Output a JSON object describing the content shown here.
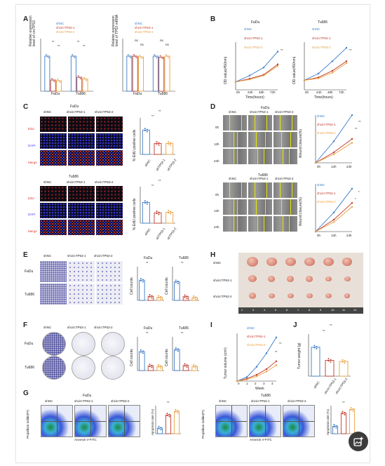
{
  "panels": {
    "A": {
      "label": "A",
      "legend": [
        "shNC",
        "shcircTP53-1",
        "shcircTP53-2"
      ],
      "chart_left": {
        "ylabel": "Relative expression level of circTP53",
        "groups": [
          "FaDu",
          "Tu686"
        ],
        "sig": [
          "**",
          "**",
          "**",
          "**"
        ]
      },
      "chart_right": {
        "ylabel": "Relative expression level of TP53 mRNA",
        "groups": [
          "FaDu",
          "Tu686"
        ],
        "sig": [
          "ns",
          "ns",
          "ns",
          "ns"
        ]
      }
    },
    "B": {
      "label": "B",
      "titles": [
        "FaDu",
        "Tu686"
      ],
      "legend": [
        "shNC",
        "shcircTP53-1",
        "shcircTP53-2"
      ],
      "ylabel": "OD value(450nm)",
      "xlabel": "Time(hours)",
      "xticks": [
        "0h",
        "24h",
        "48h",
        "72h"
      ],
      "sig": [
        "**",
        "**"
      ]
    },
    "C": {
      "label": "C",
      "titles": [
        "FaDu",
        "Tu686"
      ],
      "cols": [
        "shNC",
        "shcircTP53-1",
        "shcircTP53-2"
      ],
      "rows": [
        "EdU",
        "DAPI",
        "Merge"
      ],
      "ylabel": "% EdU positive cells",
      "xticks": [
        "shNC",
        "shTP53-1",
        "shTP53-2"
      ],
      "sig": [
        "**",
        "**"
      ]
    },
    "D": {
      "label": "D",
      "titles": [
        "FaDu",
        "Tu686"
      ],
      "cols": [
        "shNC",
        "shcircTP53-1",
        "shcircTP53-2"
      ],
      "rows": [
        "0h",
        "12h",
        "24h"
      ],
      "legend": [
        "shNC",
        "shcircTP53-1",
        "shcircTP53-2"
      ],
      "ylabel": "Wound closure(%)",
      "xticks": [
        "0h",
        "12h",
        "24h"
      ],
      "sig": [
        "**",
        "**",
        "*",
        "*"
      ]
    },
    "E": {
      "label": "E",
      "cols": [
        "shNC",
        "shcircTP53-1",
        "shcircTP53-2"
      ],
      "rows": [
        "FaDu",
        "Tu686"
      ],
      "titles": [
        "FaDu",
        "Tu686"
      ],
      "ylabel": "Cell counts",
      "sig": [
        "**",
        "**"
      ]
    },
    "F": {
      "label": "F",
      "cols": [
        "shNC",
        "shcircTP53-1",
        "shcircTP53-2"
      ],
      "rows": [
        "FaDu",
        "Tu686"
      ],
      "titles": [
        "FaDu",
        "Tu686"
      ],
      "ylabel": "Cell counts",
      "sig": [
        "**",
        "**"
      ]
    },
    "G": {
      "label": "G",
      "titles": [
        "FaDu",
        "Tu686"
      ],
      "cols": [
        "shNC",
        "shcircTP53-1",
        "shcircTP53-2"
      ],
      "ylabel": "Propidium Iodide(PI)",
      "xlabel": "Annexin V-FITC",
      "bar_ylabel": "Apoptosis rate (%)",
      "sig": [
        "**",
        "**"
      ]
    },
    "H": {
      "label": "H",
      "rows": [
        "shNC",
        "shcircTP53-1",
        "shcircTP53-2"
      ],
      "ruler": [
        "2",
        "3",
        "4",
        "5",
        "6",
        "7",
        "8",
        "9",
        "10",
        "11",
        "12"
      ]
    },
    "I": {
      "label": "I",
      "legend": [
        "shNC",
        "shcircTP53-1",
        "shcircTP53-2"
      ],
      "ylabel": "Tumor volume (cm³)",
      "xlabel": "Week",
      "xticks": [
        "0",
        "1",
        "2",
        "3",
        "4"
      ],
      "sig": [
        "**",
        "**"
      ]
    },
    "J": {
      "label": "J",
      "ylabel": "Tumor weight (g)",
      "xticks": [
        "shNC",
        "shcircTP53-1",
        "shcircTP53-2"
      ],
      "sig": [
        "**",
        "**"
      ]
    }
  },
  "colors": {
    "shNC": "#3a7bc8",
    "sh1": "#c0392b",
    "sh2": "#e8a040"
  },
  "chart_data": [
    {
      "type": "bar",
      "panel": "A-left",
      "categories": [
        "FaDu",
        "Tu686"
      ],
      "series": [
        {
          "name": "shNC",
          "values": [
            1.0,
            1.0
          ]
        },
        {
          "name": "shcircTP53-1",
          "values": [
            0.32,
            0.4
          ]
        },
        {
          "name": "shcircTP53-2",
          "values": [
            0.3,
            0.35
          ]
        }
      ],
      "ylim": [
        0,
        1.5
      ]
    },
    {
      "type": "bar",
      "panel": "A-right",
      "categories": [
        "FaDu",
        "Tu686"
      ],
      "series": [
        {
          "name": "shNC",
          "values": [
            1.0,
            1.0
          ]
        },
        {
          "name": "shcircTP53-1",
          "values": [
            1.0,
            0.97
          ]
        },
        {
          "name": "shcircTP53-2",
          "values": [
            0.98,
            1.0
          ]
        }
      ],
      "ylim": [
        0,
        1.5
      ]
    },
    {
      "type": "line",
      "panel": "B-FaDu",
      "x": [
        "0h",
        "24h",
        "48h",
        "72h"
      ],
      "series": [
        {
          "name": "shNC",
          "values": [
            0.5,
            0.9,
            1.4,
            2.4
          ]
        },
        {
          "name": "shcircTP53-1",
          "values": [
            0.5,
            0.7,
            0.95,
            1.6
          ]
        },
        {
          "name": "shcircTP53-2",
          "values": [
            0.5,
            0.65,
            0.9,
            1.5
          ]
        }
      ],
      "ylim": [
        0,
        3
      ]
    },
    {
      "type": "line",
      "panel": "B-Tu686",
      "x": [
        "0h",
        "24h",
        "48h",
        "72h"
      ],
      "series": [
        {
          "name": "shNC",
          "values": [
            0.5,
            0.85,
            1.5,
            2.2
          ]
        },
        {
          "name": "shcircTP53-1",
          "values": [
            0.5,
            0.65,
            1.0,
            1.5
          ]
        },
        {
          "name": "shcircTP53-2",
          "values": [
            0.5,
            0.6,
            0.9,
            1.4
          ]
        }
      ],
      "ylim": [
        0,
        2.5
      ]
    },
    {
      "type": "bar",
      "panel": "C-FaDu",
      "categories": [
        "shNC",
        "shTP53-1",
        "shTP53-2"
      ],
      "values": [
        40,
        18,
        18
      ],
      "ylim": [
        0,
        60
      ]
    },
    {
      "type": "bar",
      "panel": "C-Tu686",
      "categories": [
        "shNC",
        "shTP53-1",
        "shTP53-2"
      ],
      "values": [
        34,
        17,
        18
      ],
      "ylim": [
        0,
        60
      ]
    },
    {
      "type": "line",
      "panel": "D-FaDu",
      "x": [
        "0h",
        "12h",
        "24h"
      ],
      "series": [
        {
          "name": "shNC",
          "values": [
            0,
            45,
            100
          ]
        },
        {
          "name": "shcircTP53-1",
          "values": [
            0,
            22,
            50
          ]
        },
        {
          "name": "shcircTP53-2",
          "values": [
            0,
            18,
            42
          ]
        }
      ],
      "ylim": [
        0,
        100
      ]
    },
    {
      "type": "line",
      "panel": "D-Tu686",
      "x": [
        "0h",
        "12h",
        "24h"
      ],
      "series": [
        {
          "name": "shNC",
          "values": [
            0,
            40,
            90
          ]
        },
        {
          "name": "shcircTP53-1",
          "values": [
            0,
            25,
            60
          ]
        },
        {
          "name": "shcircTP53-2",
          "values": [
            0,
            20,
            52
          ]
        }
      ],
      "ylim": [
        0,
        100
      ]
    },
    {
      "type": "bar",
      "panel": "E-FaDu",
      "categories": [
        "shNC",
        "shTP53-1",
        "shTP53-2"
      ],
      "values": [
        600,
        120,
        90
      ],
      "ylim": [
        0,
        1000
      ]
    },
    {
      "type": "bar",
      "panel": "E-Tu686",
      "categories": [
        "shNC",
        "shTP53-1",
        "shTP53-2"
      ],
      "values": [
        550,
        110,
        80
      ],
      "ylim": [
        0,
        1000
      ]
    },
    {
      "type": "bar",
      "panel": "F-FaDu",
      "categories": [
        "shNC",
        "shTP53-1",
        "shTP53-2"
      ],
      "values": [
        450,
        110,
        100
      ],
      "ylim": [
        0,
        800
      ]
    },
    {
      "type": "bar",
      "panel": "F-Tu686",
      "categories": [
        "shNC",
        "shTP53-1",
        "shTP53-2"
      ],
      "values": [
        500,
        120,
        100
      ],
      "ylim": [
        0,
        800
      ]
    },
    {
      "type": "bar",
      "panel": "G-FaDu",
      "categories": [
        "shNC",
        "shTP53-1",
        "shTP53-2"
      ],
      "values": [
        6,
        20,
        24
      ],
      "ylim": [
        0,
        30
      ]
    },
    {
      "type": "bar",
      "panel": "G-Tu686",
      "categories": [
        "shNC",
        "shTP53-1",
        "shTP53-2"
      ],
      "values": [
        8,
        22,
        26
      ],
      "ylim": [
        0,
        30
      ]
    },
    {
      "type": "line",
      "panel": "I",
      "x": [
        0,
        1,
        2,
        3,
        4
      ],
      "series": [
        {
          "name": "shNC",
          "values": [
            0,
            0.05,
            0.18,
            0.35,
            0.55
          ]
        },
        {
          "name": "shcircTP53-1",
          "values": [
            0,
            0.03,
            0.08,
            0.15,
            0.25
          ]
        },
        {
          "name": "shcircTP53-2",
          "values": [
            0,
            0.02,
            0.06,
            0.12,
            0.2
          ]
        }
      ],
      "ylim": [
        0,
        0.6
      ]
    },
    {
      "type": "bar",
      "panel": "J",
      "categories": [
        "shNC",
        "shcircTP53-1",
        "shcircTP53-2"
      ],
      "values": [
        0.55,
        0.3,
        0.28
      ],
      "ylim": [
        0,
        0.8
      ]
    }
  ]
}
